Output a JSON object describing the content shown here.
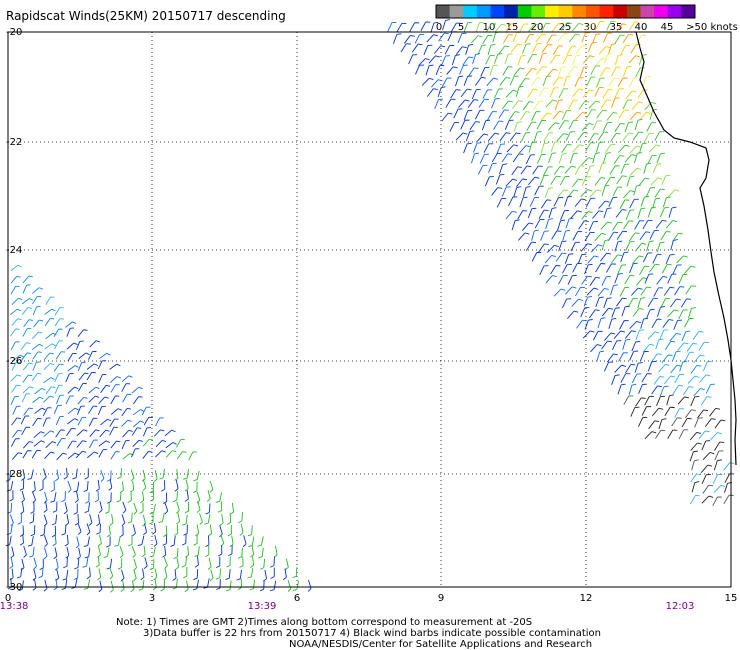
{
  "title": "Rapidscat Winds(25KM) 20150717 descending",
  "legend": {
    "colors": [
      "#555555",
      "#9a9a9a",
      "#00ccff",
      "#0099ff",
      "#0044ff",
      "#0022aa",
      "#00cc00",
      "#66ee00",
      "#ffee00",
      "#ffcc00",
      "#ff8800",
      "#ff5500",
      "#ff2200",
      "#cc0000",
      "#8b4513",
      "#cc44aa",
      "#ee00ee",
      "#9900ee",
      "#550099"
    ],
    "labels": [
      "0",
      "5",
      "10",
      "15",
      "20",
      "25",
      "30",
      "35",
      "40",
      "45"
    ],
    "end_label": ">50 knots"
  },
  "axes": {
    "y_ticks": [
      "-20",
      "-22",
      "-24",
      "-26",
      "-28",
      "-30"
    ],
    "x_ticks": [
      "0",
      "3",
      "6",
      "9",
      "12",
      "15"
    ],
    "time_labels": [
      "13:38",
      "13:39",
      "12:03"
    ]
  },
  "notes": {
    "line1": "Note: 1) Times are GMT 2)Times along bottom correspond to measurement at -20S",
    "line2": "3)Data buffer is 22 hrs from 20150717 4) Black wind barbs indicate possible contamination",
    "line3": "NOAA/NESDIS/Center for Satellite Applications and Research"
  }
}
